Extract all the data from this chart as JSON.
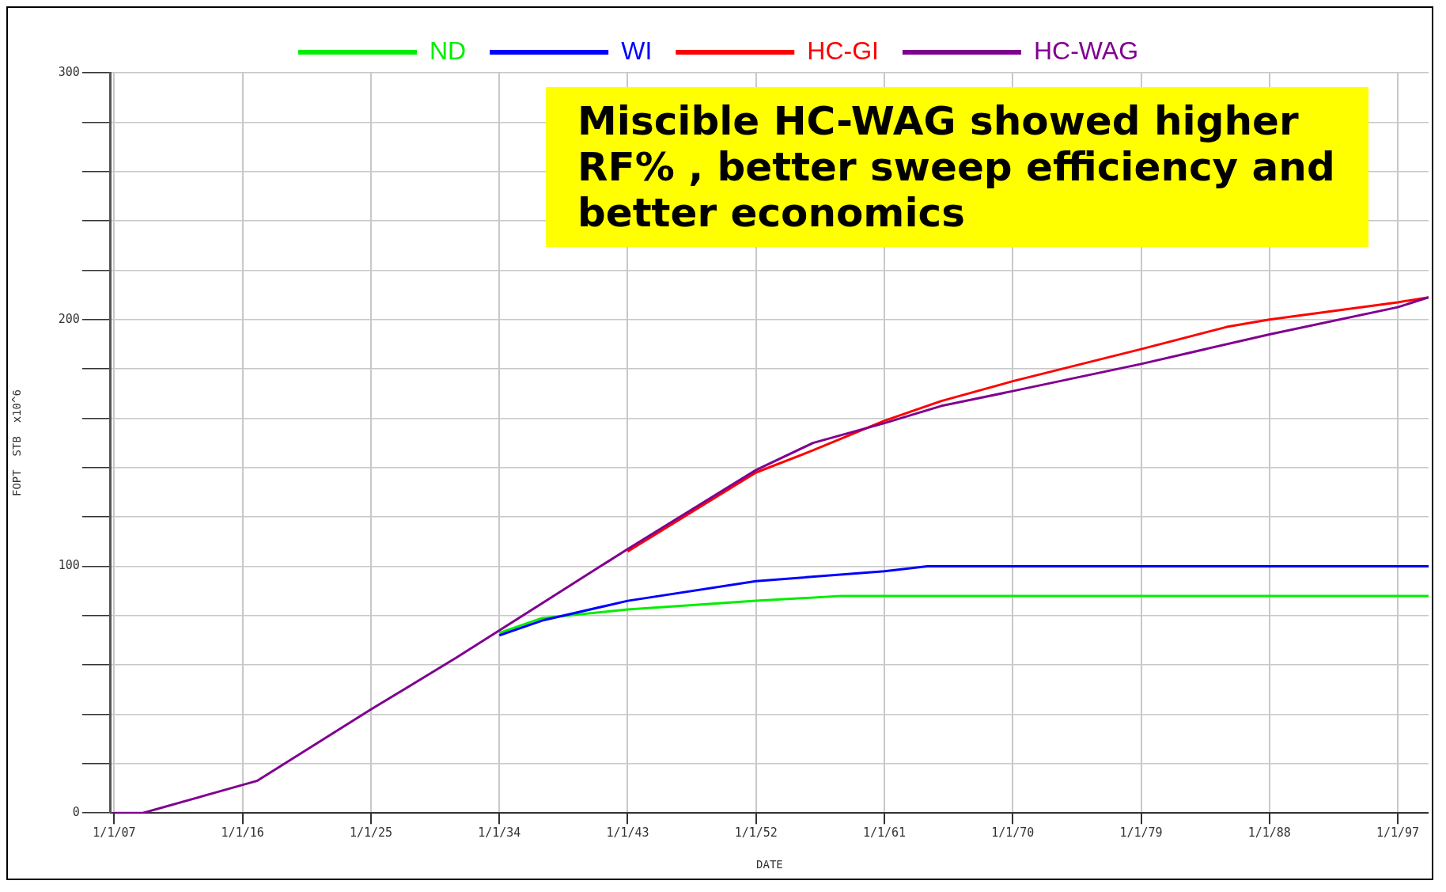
{
  "chart_data": {
    "type": "line",
    "xlabel": "DATE",
    "ylabel": "FOPT  STB  x10^6",
    "legend": "top",
    "grid": true,
    "marker": "none",
    "line_style": "solid",
    "xlim": [
      "2006-10",
      "2099-03"
    ],
    "xticks": [
      {
        "value": "2007-01-01",
        "label": "1/1/07"
      },
      {
        "value": "2016-01-01",
        "label": "1/1/16"
      },
      {
        "value": "2025-01-01",
        "label": "1/1/25"
      },
      {
        "value": "2034-01-01",
        "label": "1/1/34"
      },
      {
        "value": "2043-01-01",
        "label": "1/1/43"
      },
      {
        "value": "2052-01-01",
        "label": "1/1/52"
      },
      {
        "value": "2061-01-01",
        "label": "1/1/61"
      },
      {
        "value": "2070-01-01",
        "label": "1/1/70"
      },
      {
        "value": "2079-01-01",
        "label": "1/1/79"
      },
      {
        "value": "2088-01-01",
        "label": "1/1/88"
      },
      {
        "value": "2097-01-01",
        "label": "1/1/97"
      }
    ],
    "ylim": [
      0,
      300
    ],
    "yticks": [
      0,
      {
        "value": 20,
        "label": null
      },
      {
        "value": 40,
        "label": null
      },
      {
        "value": 60,
        "label": null
      },
      {
        "value": 80,
        "label": null
      },
      100,
      {
        "value": 120,
        "label": null
      },
      {
        "value": 140,
        "label": null
      },
      {
        "value": 160,
        "label": null
      },
      {
        "value": 180,
        "label": null
      },
      200,
      {
        "value": 220,
        "label": null
      },
      {
        "value": 240,
        "label": null
      },
      {
        "value": 260,
        "label": null
      },
      {
        "value": 280,
        "label": null
      },
      300
    ],
    "annotations": [
      "Miscible HC-WAG showed higher RF% , better sweep efficiency and better economics"
    ],
    "series": [
      {
        "name": "ND",
        "color": "#00ee00",
        "x": [
          "2034",
          "2037",
          "2043",
          "2052",
          "2058",
          "2061",
          "2099-03"
        ],
        "values": [
          73,
          79,
          82.5,
          86,
          88,
          88,
          88
        ]
      },
      {
        "name": "WI",
        "color": "#0000ff",
        "x": [
          "2034",
          "2037",
          "2043",
          "2052",
          "2061",
          "2064",
          "2099-03"
        ],
        "values": [
          72,
          78,
          86,
          94,
          98,
          100,
          100
        ]
      },
      {
        "name": "HC-GI",
        "color": "#ff0000",
        "x": [
          "2043",
          "2052",
          "2056",
          "2061",
          "2065",
          "2070",
          "2079",
          "2085",
          "2088",
          "2097",
          "2099-03"
        ],
        "values": [
          106,
          138,
          147,
          159,
          167,
          175,
          188,
          197,
          200,
          207,
          209
        ]
      },
      {
        "name": "HC-WAG",
        "color": "#800090",
        "x": [
          "2007",
          "2009",
          "2017",
          "2025",
          "2031",
          "2034",
          "2043",
          "2052",
          "2056",
          "2061",
          "2065",
          "2070",
          "2079",
          "2088",
          "2097",
          "2099-03"
        ],
        "values": [
          0,
          0,
          13,
          42,
          63,
          74,
          107,
          139,
          150,
          158,
          165,
          171,
          182,
          194,
          205,
          209
        ]
      }
    ]
  }
}
